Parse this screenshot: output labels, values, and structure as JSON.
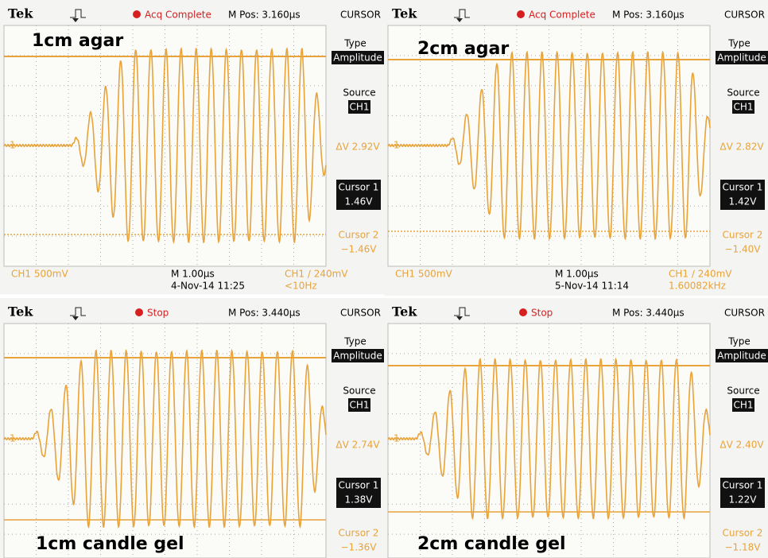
{
  "panels": [
    {
      "header": {
        "brand": "Tek",
        "status": "Acq Complete",
        "m_pos": "M Pos: 3.160µs",
        "menu_title": "CURSOR"
      },
      "menu": {
        "type_label": "Type",
        "type_value": "Amplitude",
        "source_label": "Source",
        "source_value": "CH1",
        "delta": "ΔV 2.92V",
        "cursor1_label": "Cursor 1",
        "cursor1_value": "1.46V",
        "cursor2_label": "Cursor 2",
        "cursor2_value": "−1.46V"
      },
      "channel_marker": "1",
      "footer": {
        "ch_scale": "CH1  500mV",
        "timebase": "M 1.00µs",
        "date": "4-Nov-14 11:25",
        "trigger": "CH1 ∕ 240mV",
        "frequency": "<10Hz"
      },
      "label": "1cm agar"
    },
    {
      "header": {
        "brand": "Tek",
        "status": "Acq Complete",
        "m_pos": "M Pos: 3.160µs",
        "menu_title": "CURSOR"
      },
      "menu": {
        "type_label": "Type",
        "type_value": "Amplitude",
        "source_label": "Source",
        "source_value": "CH1",
        "delta": "ΔV 2.82V",
        "cursor1_label": "Cursor 1",
        "cursor1_value": "1.42V",
        "cursor2_label": "Cursor 2",
        "cursor2_value": "−1.40V"
      },
      "channel_marker": "1",
      "footer": {
        "ch_scale": "CH1  500mV",
        "timebase": "M 1.00µs",
        "date": "5-Nov-14 11:14",
        "trigger": "CH1 ∕ 240mV",
        "frequency": "1.60082kHz"
      },
      "label": "2cm agar"
    },
    {
      "header": {
        "brand": "Tek",
        "status": "Stop",
        "m_pos": "M Pos: 3.440µs",
        "menu_title": "CURSOR"
      },
      "menu": {
        "type_label": "Type",
        "type_value": "Amplitude",
        "source_label": "Source",
        "source_value": "CH1",
        "delta": "ΔV 2.74V",
        "cursor1_label": "Cursor 1",
        "cursor1_value": "1.38V",
        "cursor2_label": "Cursor 2",
        "cursor2_value": "−1.36V"
      },
      "channel_marker": "1",
      "label": "1cm candle gel"
    },
    {
      "header": {
        "brand": "Tek",
        "status": "Stop",
        "m_pos": "M Pos: 3.440µs",
        "menu_title": "CURSOR"
      },
      "menu": {
        "type_label": "Type",
        "type_value": "Amplitude",
        "source_label": "Source",
        "source_value": "CH1",
        "delta": "ΔV 2.40V",
        "cursor1_label": "Cursor 1",
        "cursor1_value": "1.22V",
        "cursor2_label": "Cursor 2",
        "cursor2_value": "−1.18V"
      },
      "channel_marker": "1",
      "label": "2cm candle gel"
    }
  ]
}
